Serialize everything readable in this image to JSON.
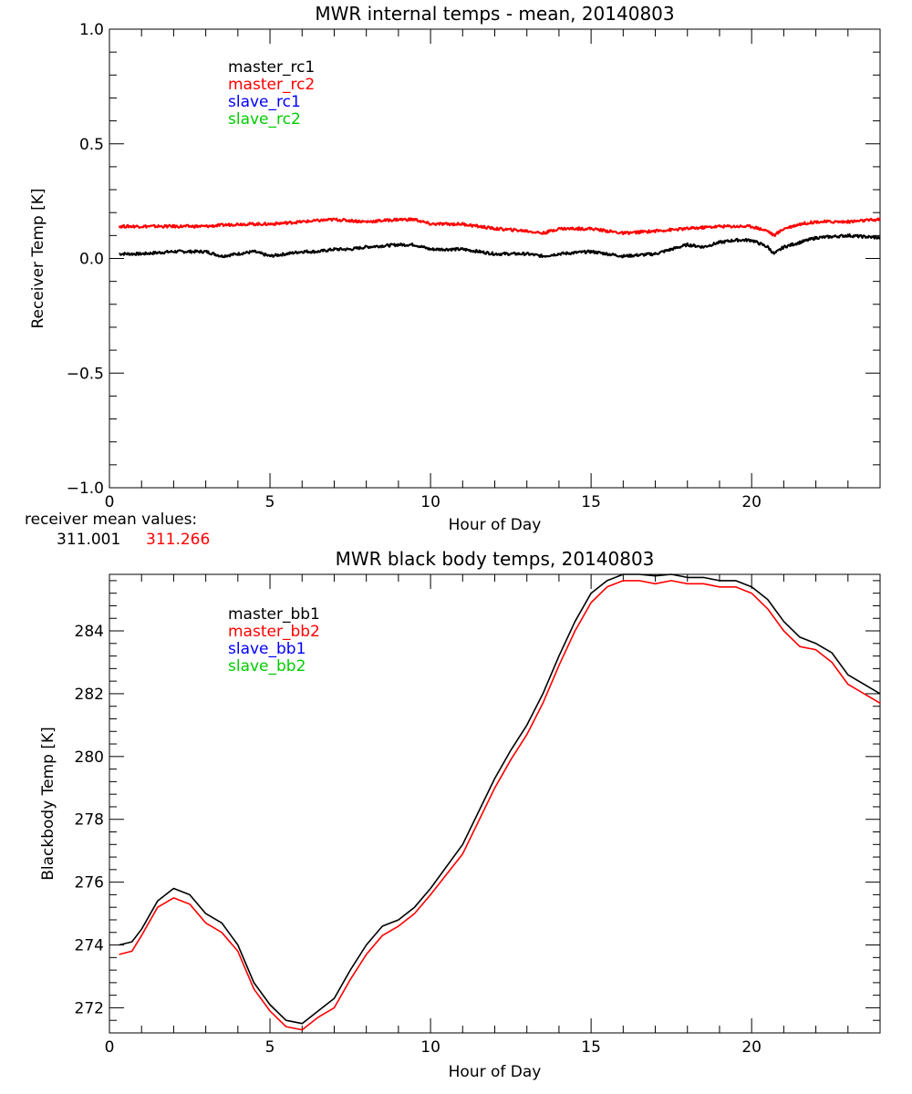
{
  "chart_data": [
    {
      "type": "line",
      "title": "MWR internal temps - mean, 20140803",
      "xlabel": "Hour of Day",
      "ylabel": "Receiver Temp [K]",
      "xlim": [
        0,
        24
      ],
      "ylim": [
        -1.0,
        1.0
      ],
      "xticks": [
        0,
        5,
        10,
        15,
        20
      ],
      "yticks": [
        -1.0,
        -0.5,
        0.0,
        0.5,
        1.0
      ],
      "ytick_labels": [
        "−1.0",
        "−0.5",
        "0.0",
        "0.5",
        "1.0"
      ],
      "grid": false,
      "legend_position": "top-left",
      "series": [
        {
          "name": "master_rc1",
          "color": "#000000",
          "x": [
            0.3,
            1,
            2,
            3,
            3.5,
            4,
            4.5,
            5,
            5.5,
            6,
            6.5,
            7,
            7.5,
            8,
            9,
            9.5,
            10,
            11,
            12,
            13,
            13.5,
            14,
            15,
            15.5,
            16,
            17,
            17.5,
            18,
            18.5,
            19,
            19.5,
            20,
            20.5,
            20.7,
            21,
            21.5,
            22,
            23,
            24
          ],
          "y": [
            0.02,
            0.02,
            0.03,
            0.03,
            0.01,
            0.02,
            0.03,
            0.01,
            0.02,
            0.03,
            0.03,
            0.04,
            0.04,
            0.05,
            0.06,
            0.06,
            0.04,
            0.04,
            0.02,
            0.02,
            0.01,
            0.02,
            0.03,
            0.02,
            0.01,
            0.02,
            0.04,
            0.06,
            0.05,
            0.07,
            0.08,
            0.08,
            0.05,
            0.02,
            0.05,
            0.07,
            0.09,
            0.1,
            0.09
          ]
        },
        {
          "name": "master_rc2",
          "color": "#ff0000",
          "x": [
            0.3,
            1,
            2,
            3,
            4,
            5,
            6,
            7,
            8,
            9,
            9.5,
            10,
            11,
            12,
            13,
            13.5,
            14,
            15,
            16,
            17,
            18,
            19,
            20,
            20.5,
            20.7,
            21,
            21.5,
            22,
            23,
            24
          ],
          "y": [
            0.14,
            0.14,
            0.14,
            0.14,
            0.15,
            0.15,
            0.16,
            0.17,
            0.16,
            0.17,
            0.17,
            0.15,
            0.15,
            0.13,
            0.12,
            0.11,
            0.13,
            0.13,
            0.11,
            0.12,
            0.13,
            0.14,
            0.14,
            0.12,
            0.1,
            0.13,
            0.15,
            0.16,
            0.16,
            0.17
          ]
        },
        {
          "name": "slave_rc1",
          "color": "#0000ff",
          "x": [],
          "y": []
        },
        {
          "name": "slave_rc2",
          "color": "#00cc00",
          "x": [],
          "y": []
        }
      ],
      "annotation_label": "receiver mean values:",
      "annotation_values": [
        "311.001",
        "311.266"
      ]
    },
    {
      "type": "line",
      "title": "MWR black body temps, 20140803",
      "xlabel": "Hour of Day",
      "ylabel": "Blackbody Temp [K]",
      "xlim": [
        0,
        24
      ],
      "ylim": [
        271.2,
        285.8
      ],
      "xticks": [
        0,
        5,
        10,
        15,
        20
      ],
      "yticks": [
        272,
        274,
        276,
        278,
        280,
        282,
        284
      ],
      "ytick_labels": [
        "272",
        "274",
        "276",
        "278",
        "280",
        "282",
        "284"
      ],
      "grid": false,
      "legend_position": "top-left",
      "series": [
        {
          "name": "master_bb1",
          "color": "#000000",
          "x": [
            0.3,
            0.7,
            1,
            1.5,
            2,
            2.5,
            3,
            3.5,
            4,
            4.5,
            5,
            5.5,
            6,
            6.5,
            7,
            7.5,
            8,
            8.5,
            9,
            9.5,
            10,
            11,
            12,
            12.5,
            13,
            13.5,
            14,
            14.5,
            15,
            15.5,
            16,
            16.5,
            17,
            17.5,
            18,
            18.5,
            19,
            19.5,
            20,
            20.5,
            21,
            21.5,
            22,
            22.5,
            23,
            23.5,
            24
          ],
          "y": [
            274.0,
            274.1,
            274.5,
            275.4,
            275.8,
            275.6,
            275.0,
            274.7,
            274.0,
            272.8,
            272.1,
            271.6,
            271.5,
            271.9,
            272.3,
            273.2,
            274.0,
            274.6,
            274.8,
            275.2,
            275.8,
            277.2,
            279.3,
            280.2,
            281.0,
            282.0,
            283.2,
            284.3,
            285.2,
            285.6,
            285.8,
            285.8,
            285.75,
            285.8,
            285.7,
            285.7,
            285.6,
            285.6,
            285.4,
            285.0,
            284.3,
            283.8,
            283.6,
            283.3,
            282.6,
            282.3,
            282.0
          ]
        },
        {
          "name": "master_bb2",
          "color": "#ff0000",
          "x": [
            0.3,
            0.7,
            1,
            1.5,
            2,
            2.5,
            3,
            3.5,
            4,
            4.5,
            5,
            5.5,
            6,
            6.5,
            7,
            7.5,
            8,
            8.5,
            9,
            9.5,
            10,
            11,
            12,
            12.5,
            13,
            13.5,
            14,
            14.5,
            15,
            15.5,
            16,
            16.5,
            17,
            17.5,
            18,
            18.5,
            19,
            19.5,
            20,
            20.5,
            21,
            21.5,
            22,
            22.5,
            23,
            23.5,
            24
          ],
          "y": [
            273.7,
            273.8,
            274.3,
            275.2,
            275.5,
            275.3,
            274.7,
            274.4,
            273.8,
            272.6,
            271.9,
            271.4,
            271.3,
            271.7,
            272.0,
            272.9,
            273.7,
            274.3,
            274.6,
            275.0,
            275.6,
            276.9,
            279.0,
            279.9,
            280.7,
            281.7,
            282.9,
            284.0,
            284.9,
            285.4,
            285.6,
            285.6,
            285.5,
            285.6,
            285.5,
            285.5,
            285.4,
            285.4,
            285.2,
            284.7,
            284.0,
            283.5,
            283.4,
            283.0,
            282.3,
            282.0,
            281.7
          ]
        },
        {
          "name": "slave_bb1",
          "color": "#0000ff",
          "x": [],
          "y": []
        },
        {
          "name": "slave_bb2",
          "color": "#00cc00",
          "x": [],
          "y": []
        }
      ]
    }
  ]
}
